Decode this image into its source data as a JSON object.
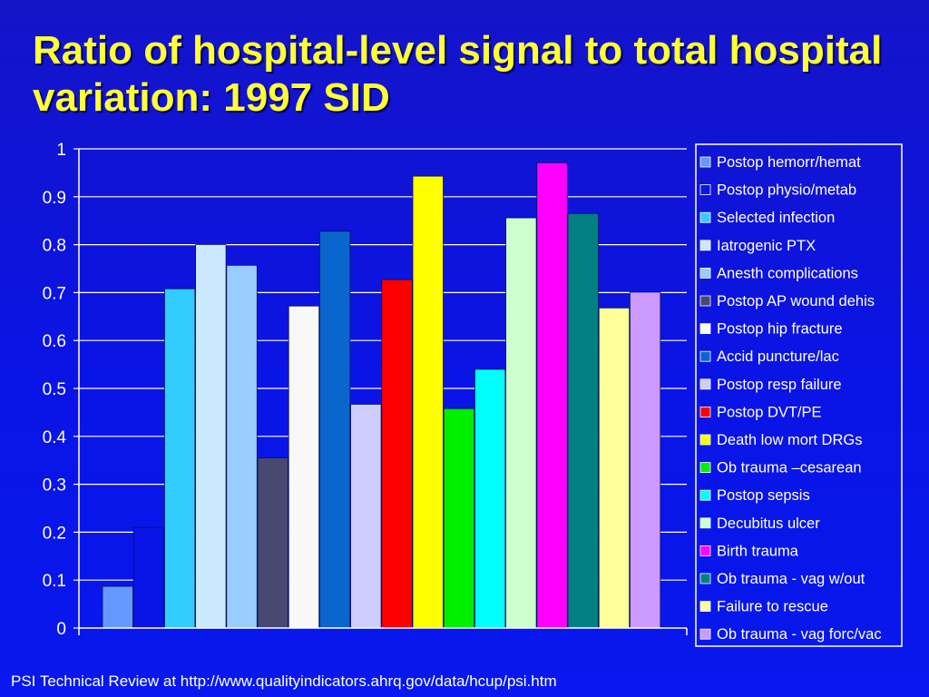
{
  "slide": {
    "title": "Ratio of hospital-level signal to total hospital variation: 1997 SID",
    "footer": "PSI Technical Review at http://www.qualityindicators.ahrq.gov/data/hcup/psi.htm"
  },
  "chart_data": {
    "type": "bar",
    "title": "",
    "xlabel": "",
    "ylabel": "",
    "ylim": [
      0,
      1
    ],
    "yticks": [
      "0",
      "0.1",
      "0.2",
      "0.3",
      "0.4",
      "0.5",
      "0.6",
      "0.7",
      "0.8",
      "0.9",
      "1"
    ],
    "grid": true,
    "legend_position": "right",
    "series": [
      {
        "name": "Postop hemorr/hemat",
        "value": 0.087,
        "color": "#6699ff"
      },
      {
        "name": "Postop physio/metab",
        "value": 0.21,
        "color": "#0a14e6"
      },
      {
        "name": "Selected infection",
        "value": 0.708,
        "color": "#33ccff"
      },
      {
        "name": "Iatrogenic PTX",
        "value": 0.8,
        "color": "#cce8ff"
      },
      {
        "name": "Anesth complications",
        "value": 0.757,
        "color": "#99ccff"
      },
      {
        "name": "Postop AP wound dehis",
        "value": 0.355,
        "color": "#484870"
      },
      {
        "name": "Postop hip fracture",
        "value": 0.672,
        "color": "#f8f8f8"
      },
      {
        "name": "Accid puncture/lac",
        "value": 0.828,
        "color": "#0a66cc"
      },
      {
        "name": "Postop resp failure",
        "value": 0.467,
        "color": "#ccccff"
      },
      {
        "name": "Postop DVT/PE",
        "value": 0.727,
        "color": "#ff0000"
      },
      {
        "name": "Death low mort DRGs",
        "value": 0.943,
        "color": "#ffff00"
      },
      {
        "name": "Ob trauma –cesarean",
        "value": 0.458,
        "color": "#00ee00"
      },
      {
        "name": "Postop sepsis",
        "value": 0.54,
        "color": "#00ffff"
      },
      {
        "name": "Decubitus ulcer",
        "value": 0.856,
        "color": "#ccffcc"
      },
      {
        "name": "Birth trauma",
        "value": 0.971,
        "color": "#ff00ff"
      },
      {
        "name": "Ob trauma - vag w/out",
        "value": 0.865,
        "color": "#008080"
      },
      {
        "name": "Failure to rescue",
        "value": 0.668,
        "color": "#ffff99"
      },
      {
        "name": "Ob trauma - vag forc/vac",
        "value": 0.701,
        "color": "#cc99ff"
      }
    ]
  }
}
